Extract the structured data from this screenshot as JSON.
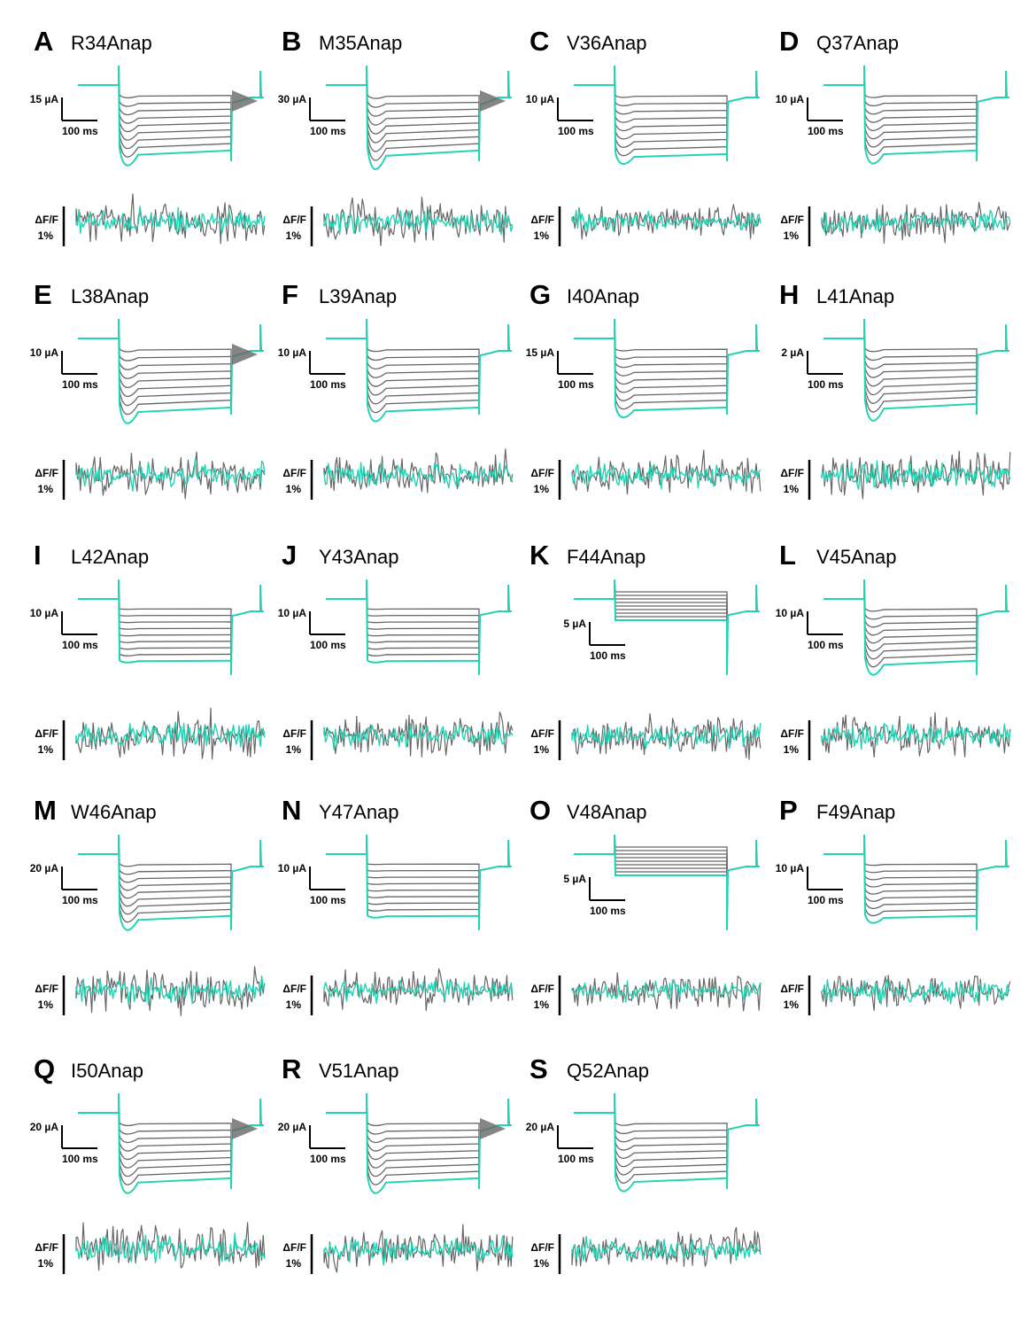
{
  "colors": {
    "highlight": "#22d3b4",
    "family": "#666666",
    "scalebar": "#000000"
  },
  "chart_data": {
    "type": "line",
    "panels": [
      {
        "letter": "A",
        "construct": "R34Anap",
        "current_scale": "15 µA",
        "time_scale": "100 ms",
        "fluor_scale": "ΔF/F 1%",
        "steps": 9,
        "curve": 0.8,
        "tail": 0.5,
        "amp": 0.9,
        "noise": 1.0
      },
      {
        "letter": "B",
        "construct": "M35Anap",
        "current_scale": "30 µA",
        "time_scale": "100 ms",
        "fluor_scale": "ΔF/F 1%",
        "steps": 9,
        "curve": 1.0,
        "tail": 1.0,
        "amp": 0.9,
        "noise": 1.0
      },
      {
        "letter": "C",
        "construct": "V36Anap",
        "current_scale": "10 µA",
        "time_scale": "100 ms",
        "fluor_scale": "ΔF/F 1%",
        "steps": 9,
        "curve": 0.5,
        "tail": 0.2,
        "amp": 0.95,
        "noise": 0.75
      },
      {
        "letter": "D",
        "construct": "Q37Anap",
        "current_scale": "10 µA",
        "time_scale": "100 ms",
        "fluor_scale": "ΔF/F 1%",
        "steps": 9,
        "curve": 0.7,
        "tail": 0.2,
        "amp": 0.9,
        "noise": 0.85
      },
      {
        "letter": "E",
        "construct": "L38Anap",
        "current_scale": "10 µA",
        "time_scale": "100 ms",
        "fluor_scale": "ΔF/F 1%",
        "steps": 9,
        "curve": 0.8,
        "tail": 0.6,
        "amp": 0.95,
        "noise": 0.95
      },
      {
        "letter": "F",
        "construct": "L39Anap",
        "current_scale": "10 µA",
        "time_scale": "100 ms",
        "fluor_scale": "ΔF/F 1%",
        "steps": 9,
        "curve": 0.7,
        "tail": 0.3,
        "amp": 0.95,
        "noise": 0.9
      },
      {
        "letter": "G",
        "construct": "I40Anap",
        "current_scale": "15 µA",
        "time_scale": "100 ms",
        "fluor_scale": "ΔF/F 1%",
        "steps": 9,
        "curve": 0.5,
        "tail": 0.2,
        "amp": 0.95,
        "noise": 0.9
      },
      {
        "letter": "H",
        "construct": "L41Anap",
        "current_scale": "2 µA",
        "time_scale": "100 ms",
        "fluor_scale": "ΔF/F 1%",
        "steps": 9,
        "curve": 0.9,
        "tail": 0.2,
        "amp": 0.9,
        "noise": 1.0
      },
      {
        "letter": "I",
        "construct": "L42Anap",
        "current_scale": "10 µA",
        "time_scale": "100 ms",
        "fluor_scale": "ΔF/F 1%",
        "steps": 9,
        "curve": 0.1,
        "tail": 0.3,
        "amp": 0.85,
        "noise": 1.0
      },
      {
        "letter": "J",
        "construct": "Y43Anap",
        "current_scale": "10 µA",
        "time_scale": "100 ms",
        "fluor_scale": "ΔF/F 1%",
        "steps": 9,
        "curve": 0.1,
        "tail": 0.1,
        "amp": 0.85,
        "noise": 1.0
      },
      {
        "letter": "K",
        "construct": "F44Anap",
        "current_scale": "5 µA",
        "time_scale": "100 ms",
        "fluor_scale": "ΔF/F 1%",
        "steps": 9,
        "curve": 0.0,
        "tail": 0.1,
        "amp": 0.35,
        "noise": 0.9
      },
      {
        "letter": "L",
        "construct": "V45Anap",
        "current_scale": "10 µA",
        "time_scale": "100 ms",
        "fluor_scale": "ΔF/F 1%",
        "steps": 9,
        "curve": 0.8,
        "tail": 0.3,
        "amp": 0.85,
        "noise": 0.9
      },
      {
        "letter": "M",
        "construct": "W46Anap",
        "current_scale": "20 µA",
        "time_scale": "100 ms",
        "fluor_scale": "ΔF/F 1%",
        "steps": 9,
        "curve": 0.8,
        "tail": 0.4,
        "amp": 0.85,
        "noise": 0.95
      },
      {
        "letter": "N",
        "construct": "Y47Anap",
        "current_scale": "10 µA",
        "time_scale": "100 ms",
        "fluor_scale": "ΔF/F 1%",
        "steps": 9,
        "curve": 0.1,
        "tail": 0.1,
        "amp": 0.85,
        "noise": 0.85
      },
      {
        "letter": "O",
        "construct": "V48Anap",
        "current_scale": "5 µA",
        "time_scale": "100 ms",
        "fluor_scale": "ΔF/F 1%",
        "steps": 9,
        "curve": 0.0,
        "tail": 0.1,
        "amp": 0.35,
        "noise": 0.8
      },
      {
        "letter": "P",
        "construct": "F49Anap",
        "current_scale": "10 µA",
        "time_scale": "100 ms",
        "fluor_scale": "ΔF/F 1%",
        "steps": 9,
        "curve": 0.4,
        "tail": 0.1,
        "amp": 0.85,
        "noise": 0.85
      },
      {
        "letter": "Q",
        "construct": "I50Anap",
        "current_scale": "20 µA",
        "time_scale": "100 ms",
        "fluor_scale": "ΔF/F 1%",
        "steps": 9,
        "curve": 0.8,
        "tail": 0.6,
        "amp": 0.9,
        "noise": 1.0
      },
      {
        "letter": "R",
        "construct": "V51Anap",
        "current_scale": "20 µA",
        "time_scale": "100 ms",
        "fluor_scale": "ΔF/F 1%",
        "steps": 9,
        "curve": 0.8,
        "tail": 0.7,
        "amp": 0.9,
        "noise": 1.0
      },
      {
        "letter": "S",
        "construct": "Q52Anap",
        "current_scale": "20 µA",
        "time_scale": "100 ms",
        "fluor_scale": "ΔF/F 1%",
        "steps": 9,
        "curve": 0.7,
        "tail": 0.2,
        "amp": 0.9,
        "noise": 0.85
      }
    ]
  }
}
